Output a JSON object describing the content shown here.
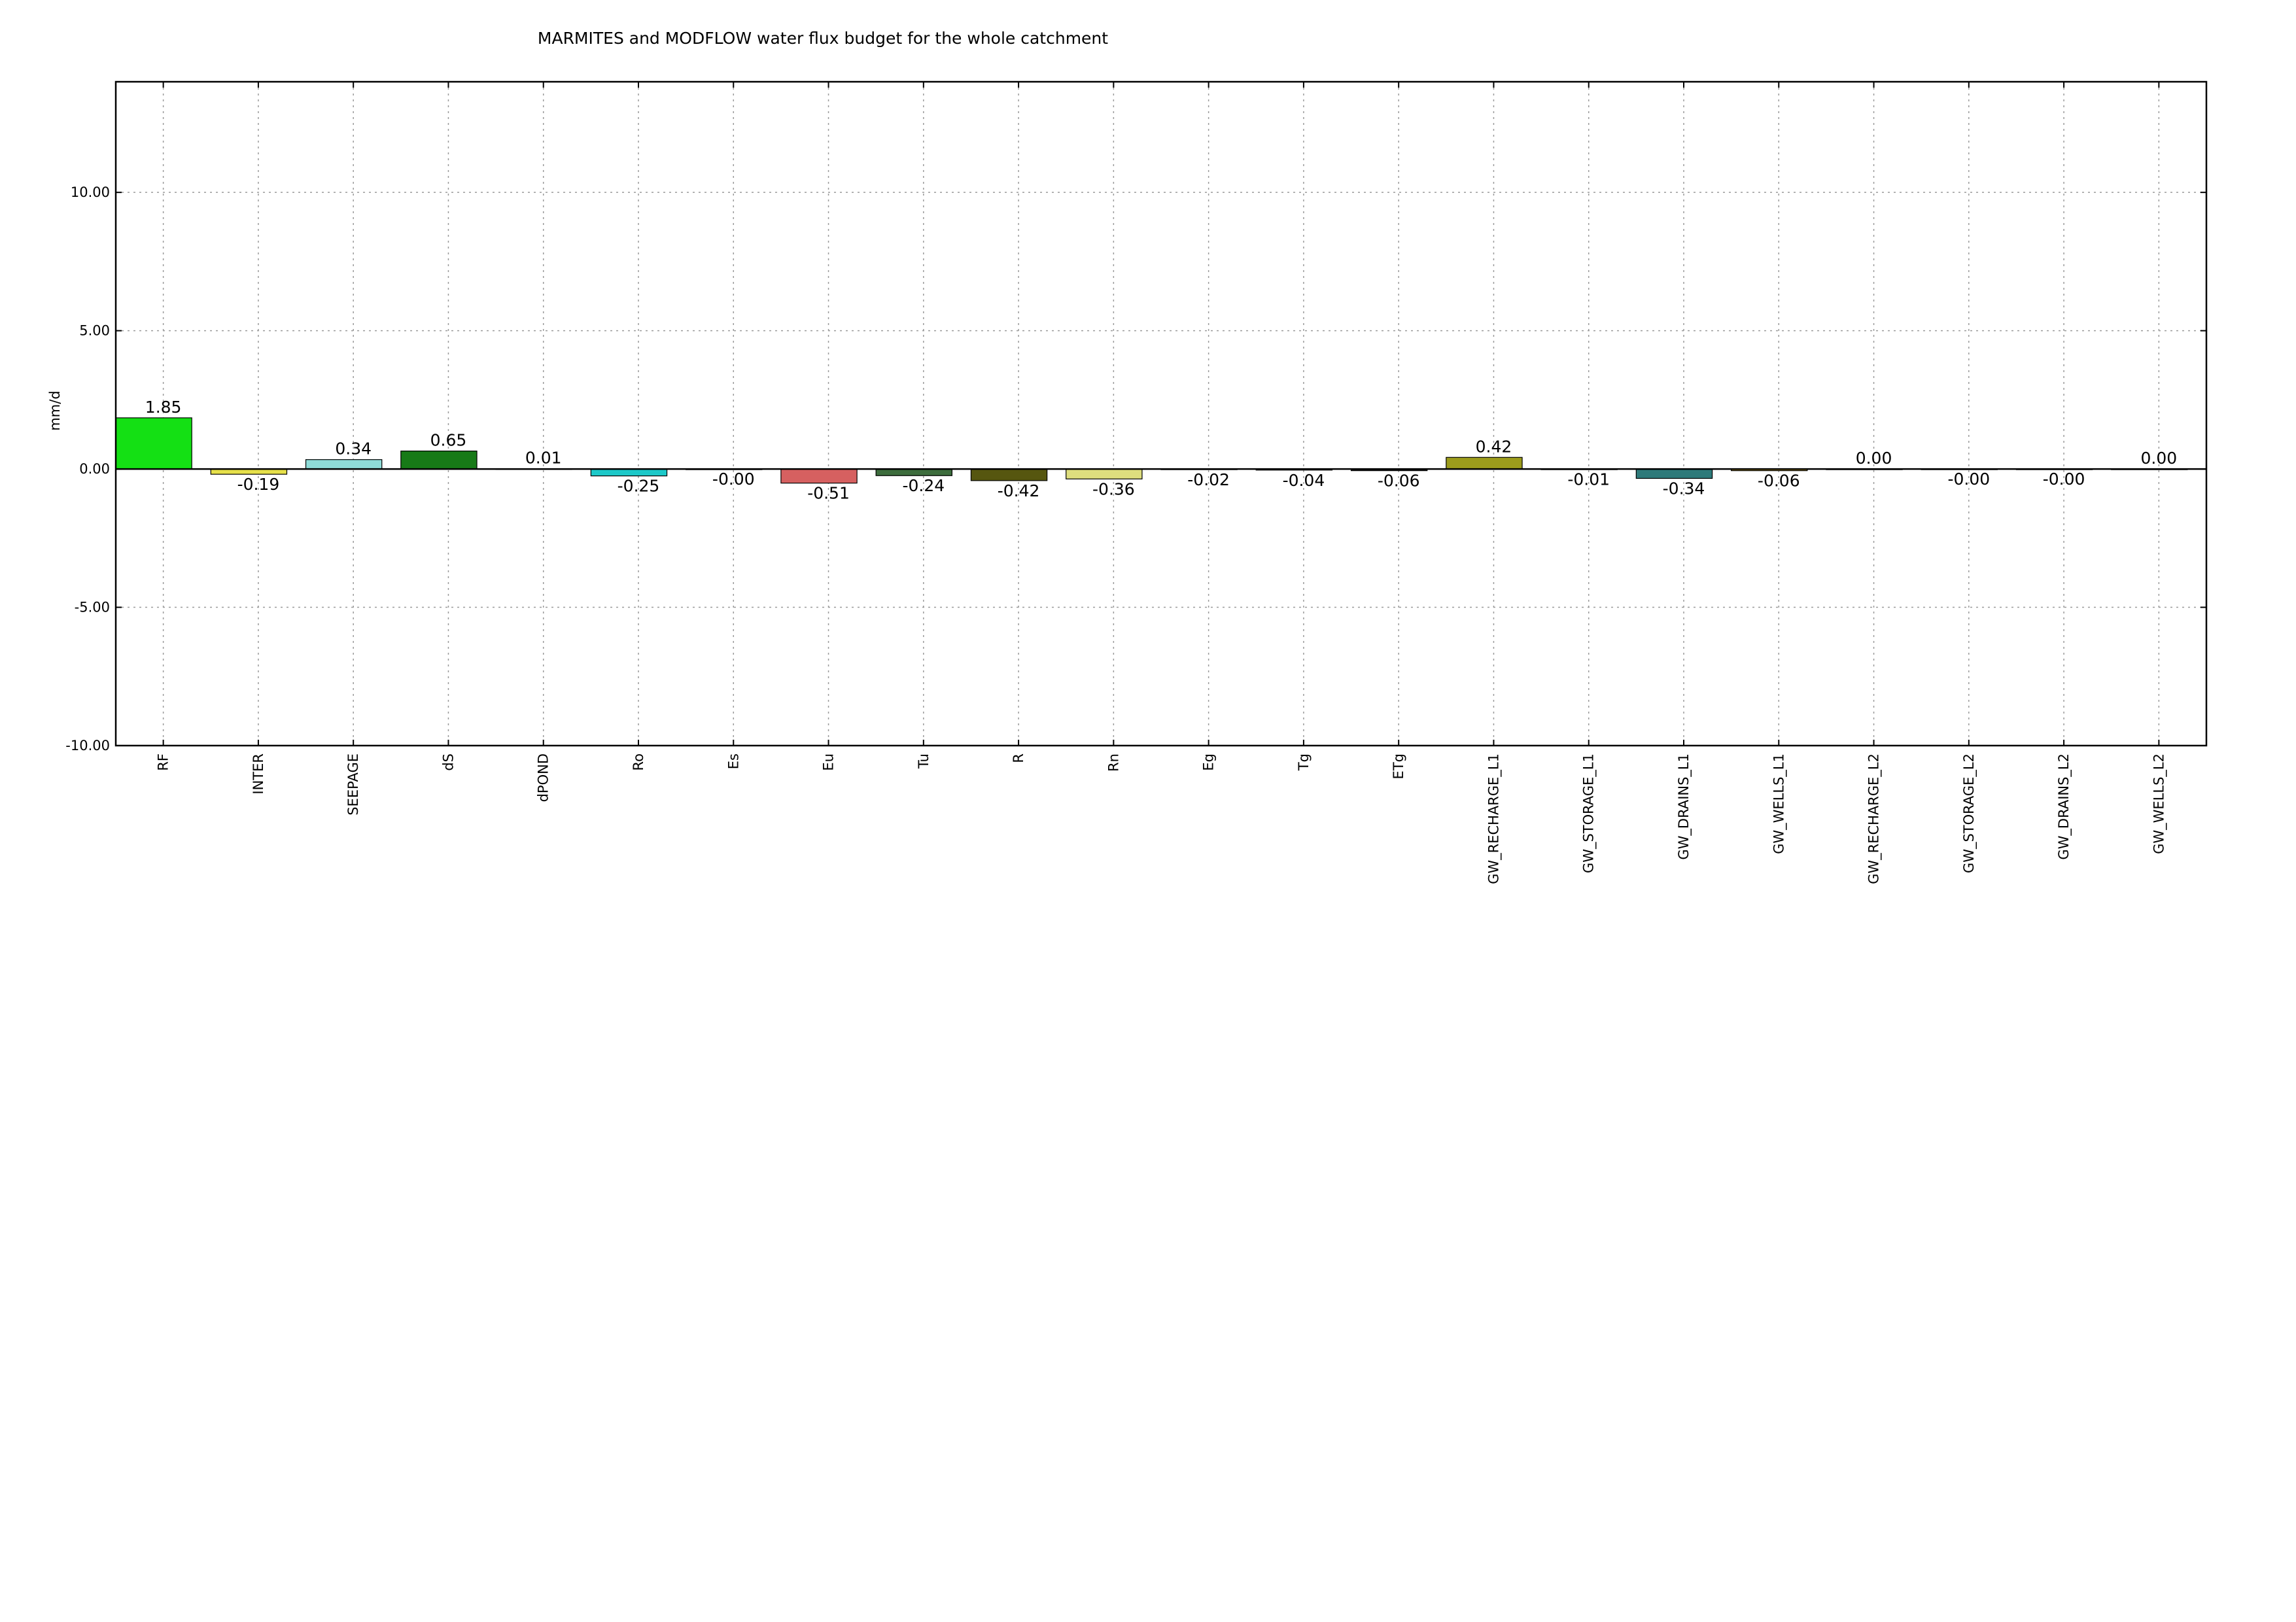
{
  "chart_data": {
    "type": "bar",
    "title": "MARMITES and MODFLOW water flux budget for the whole catchment",
    "xlabel": "",
    "ylabel": "mm/d",
    "ylim": [
      -10,
      14
    ],
    "yticks": [
      -10,
      -5,
      0,
      5,
      10
    ],
    "ytick_labels": [
      "-10.00",
      "-5.00",
      "0.00",
      "5.00",
      "10.00"
    ],
    "grid": true,
    "categories": [
      "RF",
      "INTER",
      "SEEPAGE",
      "dS",
      "dPOND",
      "Ro",
      "Es",
      "Eu",
      "Tu",
      "R",
      "Rn",
      "Eg",
      "Tg",
      "ETg",
      "GW_RECHARGE_L1",
      "GW_STORAGE_L1",
      "GW_DRAINS_L1",
      "GW_WELLS_L1",
      "GW_RECHARGE_L2",
      "GW_STORAGE_L2",
      "GW_DRAINS_L2",
      "GW_WELLS_L2"
    ],
    "values": [
      1.85,
      -0.19,
      0.34,
      0.65,
      0.01,
      -0.25,
      -0.001,
      -0.51,
      -0.24,
      -0.42,
      -0.36,
      -0.02,
      -0.04,
      -0.06,
      0.42,
      -0.01,
      -0.34,
      -0.06,
      0.0,
      -0.001,
      -0.001,
      0.0
    ],
    "value_labels": [
      "1.85",
      "-0.19",
      "0.34",
      "0.65",
      "0.01",
      "-0.25",
      "-0.00",
      "-0.51",
      "-0.24",
      "-0.42",
      "-0.36",
      "-0.02",
      "-0.04",
      "-0.06",
      "0.42",
      "-0.01",
      "-0.34",
      "-0.06",
      "0.00",
      "-0.00",
      "-0.00",
      "0.00"
    ],
    "colors": [
      "#14e014",
      "#e6e04a",
      "#8fdcd8",
      "#177a17",
      "#4a8fd6",
      "#1cc8c8",
      "#2a4a4a",
      "#d66060",
      "#3d6d3d",
      "#56560f",
      "#dede7e",
      "#1a3a3a",
      "#555555",
      "#222222",
      "#9c9c1c",
      "#444444",
      "#2e7a7a",
      "#c0a030",
      "#444444",
      "#444444",
      "#444444",
      "#444444"
    ]
  }
}
